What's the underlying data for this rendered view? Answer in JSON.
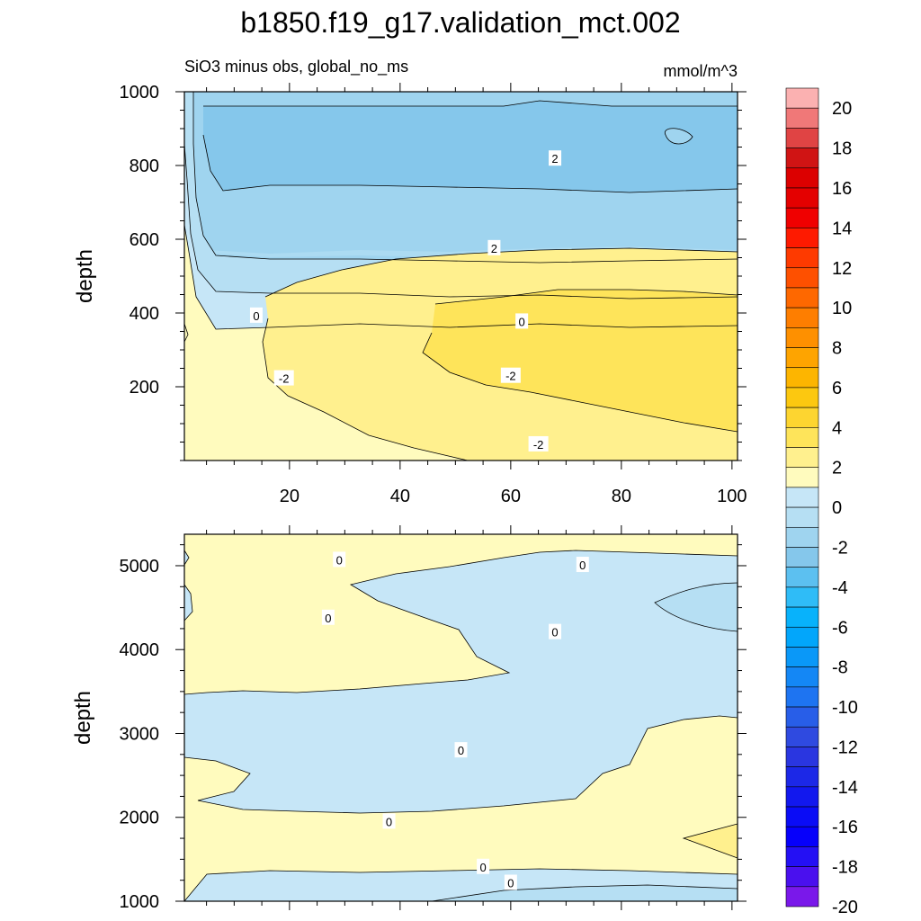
{
  "page": {
    "title": "b1850.f19_g17.validation_mct.002"
  },
  "chart_data": [
    {
      "type": "heatmap",
      "panel": "upper",
      "subtitle": "SiO3 minus obs, global_no_ms",
      "units_label": "mmol/m^3",
      "xlabel": "",
      "ylabel": "depth",
      "x_ticks": [
        20,
        40,
        60,
        80,
        100
      ],
      "y_ticks": [
        200,
        400,
        600,
        800,
        1000
      ],
      "xlim": [
        1,
        101
      ],
      "ylim": [
        1000,
        0
      ],
      "contour_labels": [
        {
          "text": "-2",
          "x": 65,
          "y": 44
        },
        {
          "text": "-2",
          "x": 19,
          "y": 223
        },
        {
          "text": "-2",
          "x": 60,
          "y": 230
        },
        {
          "text": "0",
          "x": 14,
          "y": 393
        },
        {
          "text": "0",
          "x": 62,
          "y": 377
        },
        {
          "text": "2",
          "x": 57,
          "y": 576
        },
        {
          "text": "2",
          "x": 68,
          "y": 819
        }
      ]
    },
    {
      "type": "heatmap",
      "panel": "lower",
      "subtitle": "",
      "xlabel": "",
      "ylabel": "depth",
      "x_ticks": [
        20,
        40,
        60,
        80,
        100
      ],
      "y_ticks": [
        1000,
        2000,
        3000,
        4000,
        5000
      ],
      "xlim": [
        1,
        101
      ],
      "ylim": [
        5375,
        1000
      ],
      "contour_labels": [
        {
          "text": "0",
          "x": 60,
          "y": 1220
        },
        {
          "text": "0",
          "x": 55,
          "y": 1410
        },
        {
          "text": "0",
          "x": 38,
          "y": 1950
        },
        {
          "text": "0",
          "x": 51,
          "y": 2800
        },
        {
          "text": "0",
          "x": 27,
          "y": 4380
        },
        {
          "text": "0",
          "x": 68,
          "y": 4210
        },
        {
          "text": "0",
          "x": 29,
          "y": 5070
        },
        {
          "text": "0",
          "x": 73,
          "y": 5010
        }
      ]
    }
  ],
  "colorbar": {
    "labels": [
      "20",
      "18",
      "16",
      "14",
      "12",
      "10",
      "8",
      "6",
      "4",
      "2",
      "0",
      "-2",
      "-4",
      "-6",
      "-8",
      "-10",
      "-12",
      "-14",
      "-16",
      "-18",
      "-20"
    ],
    "colors": [
      "#fbb1b1",
      "#f07878",
      "#e04444",
      "#d01414",
      "#dc0000",
      "#e40000",
      "#f00000",
      "#fe1a00",
      "#fe3a00",
      "#fe5000",
      "#fe6800",
      "#fe7e00",
      "#fe9000",
      "#fea400",
      "#fdb500",
      "#fcc810",
      "#fdd530",
      "#fee45a",
      "#fff08e",
      "#fffbbe",
      "#c6e6f7",
      "#b6dff3",
      "#9fd4ef",
      "#85c7eb",
      "#5cc0f0",
      "#2fbcf7",
      "#08b2fb",
      "#02a6fb",
      "#0a98f8",
      "#1487f5",
      "#1e74f1",
      "#285ee8",
      "#2f4ae0",
      "#2a36e0",
      "#1c28e7",
      "#1218ee",
      "#0a0cf6",
      "#0600fb",
      "#2410f4",
      "#4a10ee",
      "#7a18ea"
    ]
  },
  "colors": {
    "pos_0_2": "#fffbbe",
    "pos_2_4": "#fff08e",
    "pos_4_6": "#fee45a",
    "neg_0_1": "#c6e6f7",
    "neg_1_2": "#b6dff3",
    "neg_2_3": "#9fd4ef",
    "neg_3_4": "#85c7eb"
  }
}
